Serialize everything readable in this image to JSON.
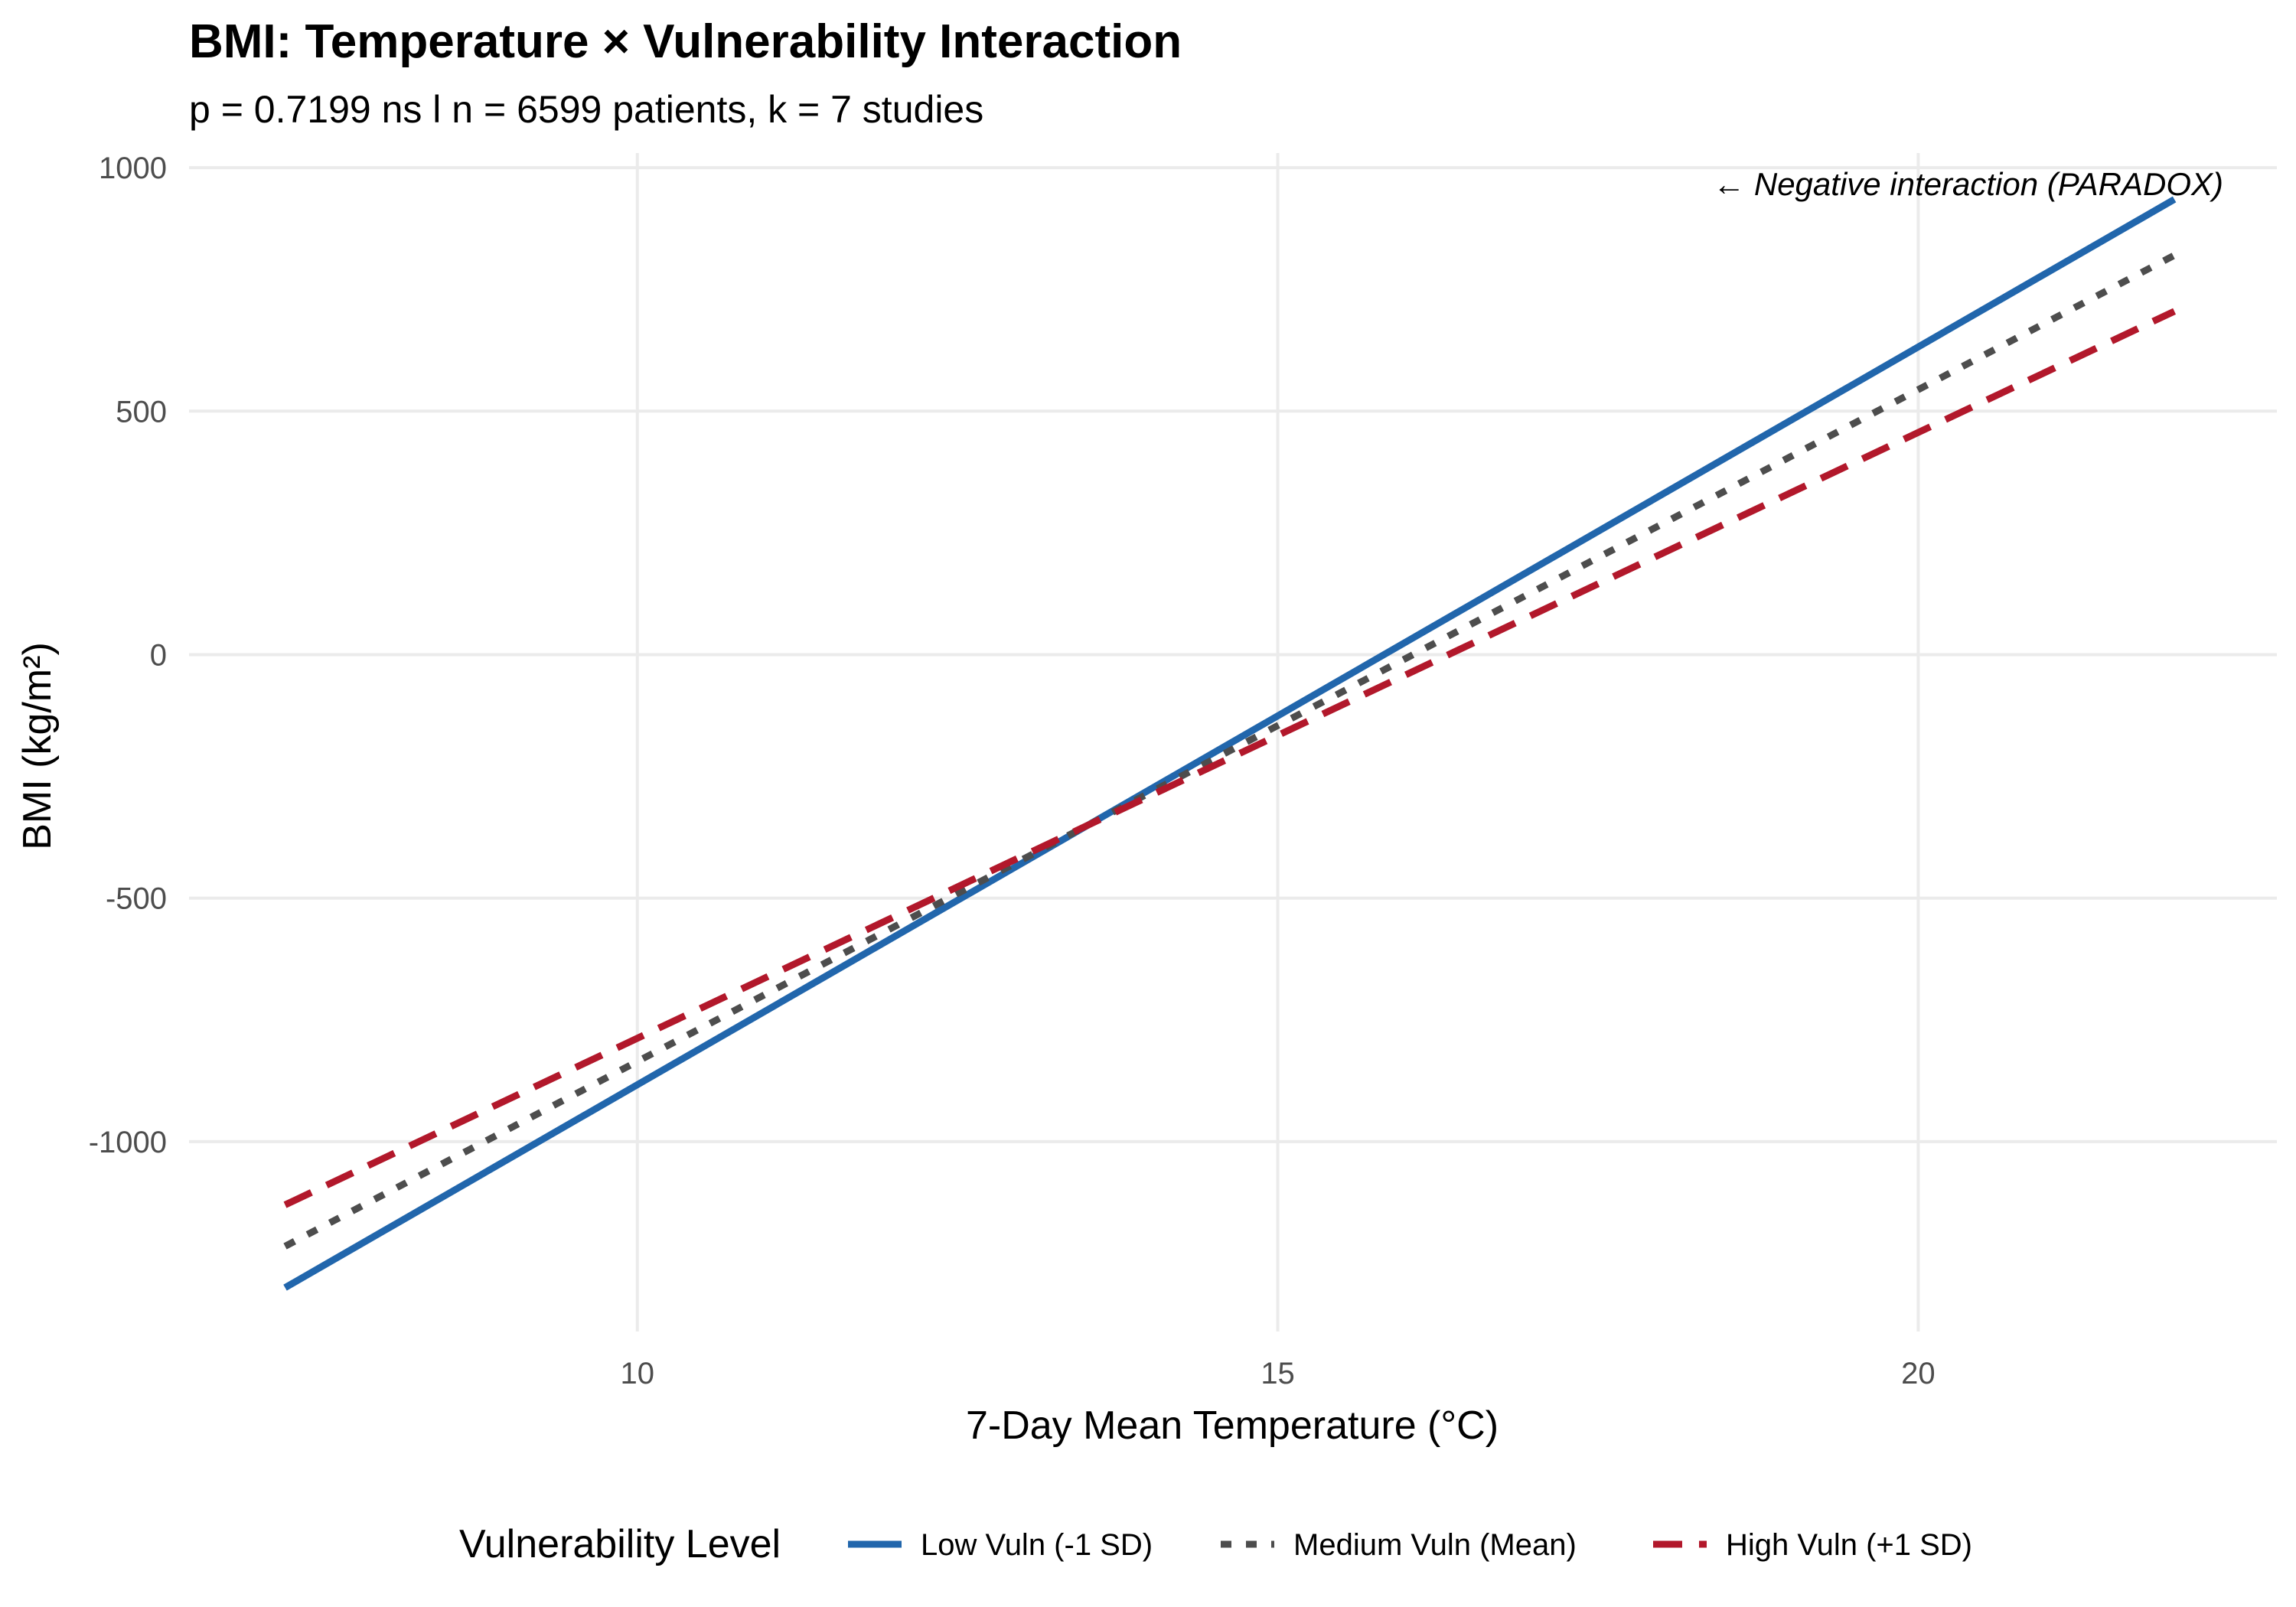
{
  "chart_data": {
    "type": "line",
    "title": "BMI: Temperature × Vulnerability Interaction",
    "subtitle": "p = 0.7199 ns l n = 6599 patients, k = 7 studies",
    "xlabel": "7-Day Mean Temperature (°C)",
    "ylabel": "BMI (kg/m²)",
    "xlim": [
      6.5,
      22.8
    ],
    "ylim": [
      -1390,
      1030
    ],
    "x_ticks": [
      10,
      15,
      20
    ],
    "x_tick_labels": [
      "10",
      "15",
      "20"
    ],
    "y_ticks": [
      1000,
      500,
      0,
      -500,
      -1000
    ],
    "y_tick_labels": [
      "1000",
      "500",
      "0",
      "-500",
      "-1000"
    ],
    "grid": true,
    "annotation": "← Negative interaction (PARADOX)",
    "legend": {
      "title": "Vulnerability Level",
      "position": "bottom"
    },
    "series": [
      {
        "name": "Low Vuln (-1 SD)",
        "color": "#2166ac",
        "dash": "solid",
        "x": [
          7.25,
          22.0
        ],
        "y": [
          -1300,
          935
        ]
      },
      {
        "name": "Medium Vuln (Mean)",
        "color": "#4d4d4d",
        "dash": "dotted",
        "x": [
          7.25,
          22.0
        ],
        "y": [
          -1215,
          820
        ]
      },
      {
        "name": "High Vuln (+1 SD)",
        "color": "#b2182b",
        "dash": "dashed",
        "x": [
          7.25,
          22.0
        ],
        "y": [
          -1130,
          705
        ]
      }
    ]
  }
}
